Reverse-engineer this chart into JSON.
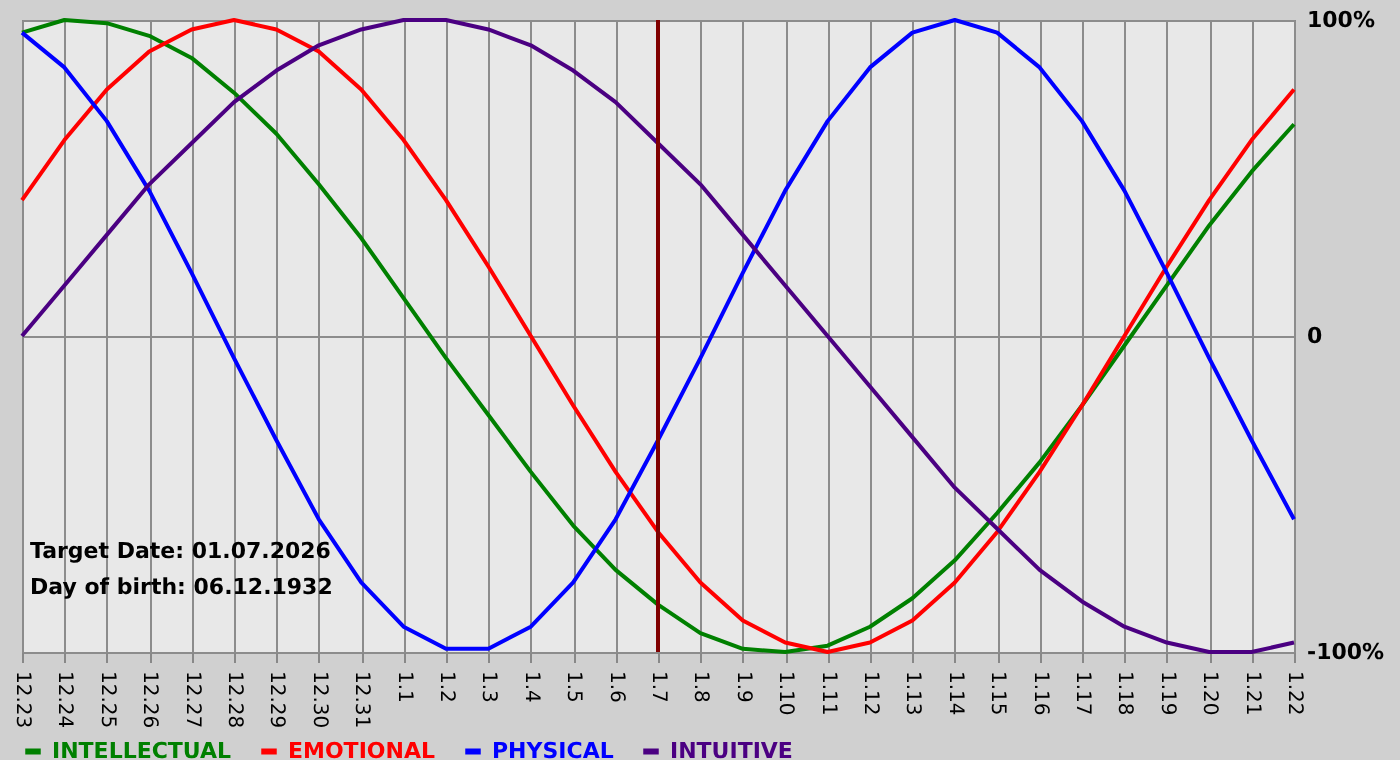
{
  "chart_data": {
    "type": "line",
    "categories": [
      "12.23",
      "12.24",
      "12.25",
      "12.26",
      "12.27",
      "12.28",
      "12.29",
      "12.30",
      "12.31",
      "1.1",
      "1.2",
      "1.3",
      "1.4",
      "1.5",
      "1.6",
      "1.7",
      "1.8",
      "1.9",
      "1.10",
      "1.11",
      "1.12",
      "1.13",
      "1.14",
      "1.15",
      "1.16",
      "1.17",
      "1.18",
      "1.19",
      "1.20",
      "1.21",
      "1.22"
    ],
    "series": [
      {
        "name": "INTELLECTUAL",
        "color": "#008000",
        "values": [
          96,
          100,
          99,
          95,
          88,
          77,
          64,
          48,
          31,
          12,
          -7,
          -25,
          -43,
          -60,
          -74,
          -85,
          -94,
          -99,
          -100,
          -98,
          -92,
          -83,
          -71,
          -56,
          -40,
          -22,
          -3,
          16,
          35,
          52,
          67
        ]
      },
      {
        "name": "EMOTIONAL",
        "color": "#ff0000",
        "values": [
          43,
          62,
          78,
          90,
          97,
          100,
          97,
          90,
          78,
          62,
          43,
          22,
          0,
          -22,
          -43,
          -62,
          -78,
          -90,
          -97,
          -100,
          -97,
          -90,
          -78,
          -62,
          -43,
          -22,
          0,
          22,
          43,
          62,
          78
        ]
      },
      {
        "name": "PHYSICAL",
        "color": "#0000ff",
        "values": [
          96,
          85,
          68,
          46,
          20,
          -7,
          -33,
          -58,
          -78,
          -92,
          -99,
          -99,
          -92,
          -78,
          -58,
          -33,
          -7,
          20,
          46,
          68,
          85,
          96,
          100,
          96,
          85,
          68,
          46,
          20,
          -7,
          -33,
          -58
        ]
      },
      {
        "name": "INTUITIVE",
        "color": "#4b0082",
        "values": [
          0,
          16,
          32,
          48,
          61,
          74,
          84,
          92,
          97,
          100,
          100,
          97,
          92,
          84,
          74,
          61,
          48,
          32,
          16,
          0,
          -16,
          -32,
          -48,
          -61,
          -74,
          -84,
          -92,
          -97,
          -100,
          -100,
          -97
        ]
      }
    ],
    "ylim": [
      -100,
      100
    ],
    "yticks": [
      {
        "value": -100,
        "label": "-100%"
      },
      {
        "value": 0,
        "label": "0"
      },
      {
        "value": 100,
        "label": "100%"
      }
    ],
    "ref_lines": [
      {
        "axis": "x",
        "value": "1.7",
        "color": "#800000"
      }
    ],
    "annotations": [
      "Target Date: 01.07.2026",
      "Day of birth: 06.12.1932"
    ],
    "grid": true,
    "legend": "bottom",
    "marker": "none",
    "line_style": "solid"
  }
}
